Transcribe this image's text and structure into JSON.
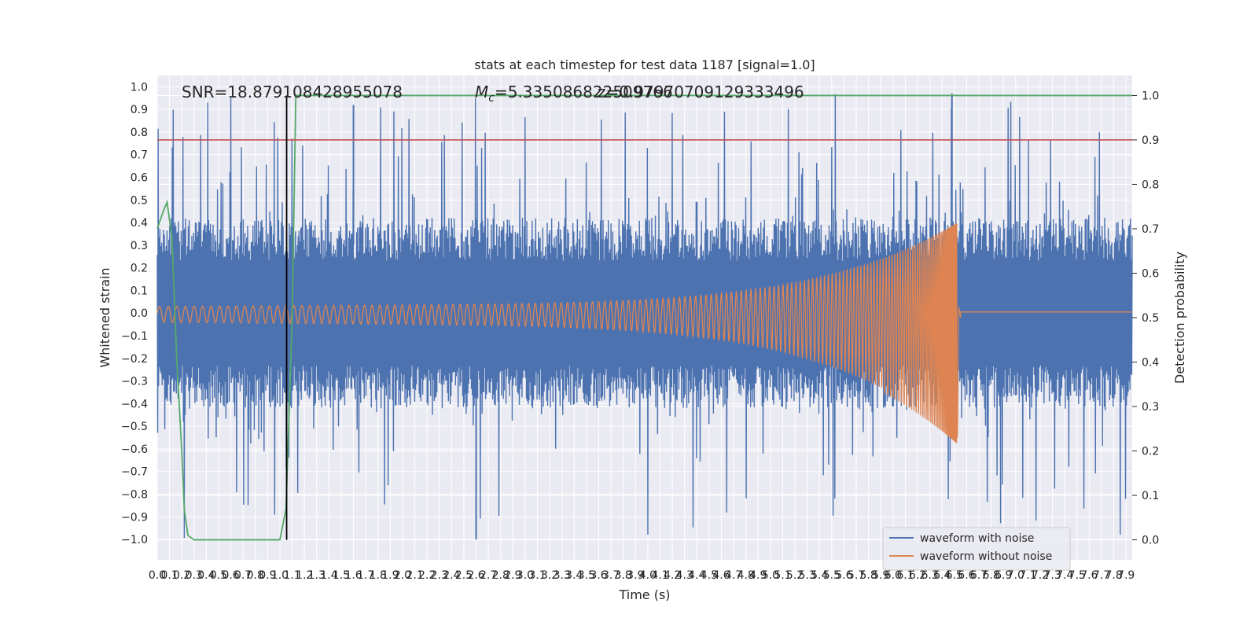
{
  "chart_data": {
    "type": "line",
    "title": "stats at each timestep for test data 1187 [signal=1.0]",
    "xlabel": "Time (s)",
    "ylabel": "Whitened strain",
    "y2label": "Detection probability",
    "xlim": [
      0.0,
      7.95
    ],
    "ylim": [
      -1.09,
      1.05
    ],
    "y2lim": [
      -0.045,
      1.045
    ],
    "x_ticks": [
      0.0,
      0.1,
      0.2,
      0.3,
      0.4,
      0.5,
      0.6,
      0.7,
      0.8,
      0.9,
      1.0,
      1.1,
      1.2,
      1.3,
      1.4,
      1.5,
      1.6,
      1.7,
      1.8,
      1.9,
      2.0,
      2.1,
      2.2,
      2.3,
      2.4,
      2.5,
      2.6,
      2.7,
      2.8,
      2.9,
      3.0,
      3.1,
      3.2,
      3.3,
      3.4,
      3.5,
      3.6,
      3.7,
      3.8,
      3.9,
      4.0,
      4.1,
      4.2,
      4.3,
      4.4,
      4.5,
      4.6,
      4.7,
      4.8,
      4.9,
      5.0,
      5.1,
      5.2,
      5.3,
      5.4,
      5.5,
      5.6,
      5.7,
      5.8,
      5.9,
      6.0,
      6.1,
      6.2,
      6.3,
      6.4,
      6.5,
      6.6,
      6.7,
      6.8,
      6.9,
      7.0,
      7.1,
      7.2,
      7.3,
      7.4,
      7.5,
      7.6,
      7.7,
      7.8,
      7.9
    ],
    "y_ticks": [
      -1.0,
      -0.9,
      -0.8,
      -0.7,
      -0.6,
      -0.5,
      -0.4,
      -0.3,
      -0.2,
      -0.1,
      0.0,
      0.1,
      0.2,
      0.3,
      0.4,
      0.5,
      0.6,
      0.7,
      0.8,
      0.9,
      1.0
    ],
    "y_tick_labels": [
      "−1.0",
      "−0.9",
      "−0.8",
      "−0.7",
      "−0.6",
      "−0.5",
      "−0.4",
      "−0.3",
      "−0.2",
      "−0.1",
      "0.0",
      "0.1",
      "0.2",
      "0.3",
      "0.4",
      "0.5",
      "0.6",
      "0.7",
      "0.8",
      "0.9",
      "1.0"
    ],
    "y2_ticks": [
      0.0,
      0.1,
      0.2,
      0.3,
      0.4,
      0.5,
      0.6,
      0.7,
      0.8,
      0.9,
      1.0
    ],
    "y2_tick_labels": [
      "0.0",
      "0.1",
      "0.2",
      "0.3",
      "0.4",
      "0.5",
      "0.6",
      "0.7",
      "0.8",
      "0.9",
      "1.0"
    ],
    "annotations": {
      "snr": "SNR=18.879108428955078",
      "mc_symbol": "M",
      "mc_sub": "c",
      "mc_value": "=5.335086822509766",
      "second_value": "z=0.97970709129333496"
    },
    "threshold_y2": 0.9,
    "marker_x": 1.055,
    "series": [
      {
        "name": "waveform with noise",
        "color": "#4c72b0",
        "envelope_pos": 0.42,
        "envelope_neg": -0.42,
        "peak_max": 0.97,
        "peak_min": -1.0
      },
      {
        "name": "waveform without noise",
        "color": "#dd8452",
        "merger_x": 6.52,
        "merger_peak": 0.38,
        "merger_trough": -0.55,
        "initial_amplitude": 0.03,
        "post_merger_amplitude": 0.005
      },
      {
        "name": "detection probability",
        "color": "#55a868",
        "axis": "y2",
        "points": [
          [
            0.0,
            0.7
          ],
          [
            0.05,
            0.74
          ],
          [
            0.08,
            0.76
          ],
          [
            0.12,
            0.68
          ],
          [
            0.16,
            0.4
          ],
          [
            0.2,
            0.2
          ],
          [
            0.22,
            0.07
          ],
          [
            0.25,
            0.01
          ],
          [
            0.3,
            0.0
          ],
          [
            1.0,
            0.0
          ],
          [
            1.05,
            0.07
          ],
          [
            1.1,
            0.5
          ],
          [
            1.13,
            1.0
          ],
          [
            7.95,
            1.0
          ]
        ]
      }
    ],
    "threshold_color": "#c44e52",
    "legend": {
      "placement": "lower-right",
      "entries": [
        "waveform with noise",
        "waveform without noise"
      ]
    },
    "grid": true
  }
}
